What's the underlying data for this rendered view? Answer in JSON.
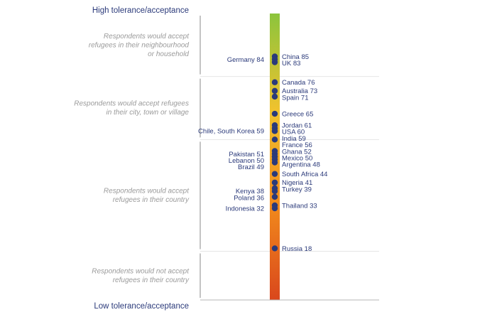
{
  "chart_data": {
    "type": "scatter",
    "top_label": "High tolerance/acceptance",
    "bottom_label": "Low tolerance/acceptance",
    "ylim": [
      0,
      100
    ],
    "gradient_colors": [
      "#8cc43c",
      "#f1c22e",
      "#f28c1c",
      "#d9471c"
    ],
    "point_color": "#2b3a7a",
    "bands": [
      {
        "text": [
          "Respondents would accept",
          "refugees in their neighbourhood",
          "or household"
        ],
        "from": 100,
        "to": 78
      },
      {
        "text": [
          "Respondents would accept refugees",
          "in their city, town or village"
        ],
        "from": 78,
        "to": 56
      },
      {
        "text": [
          "Respondents would accept",
          "refugees in their country"
        ],
        "from": 56,
        "to": 17
      },
      {
        "text": [
          "Respondents would not accept",
          "refugees in their country"
        ],
        "from": 17,
        "to": 0
      }
    ],
    "points": [
      {
        "country": "China",
        "value": 85,
        "side": "right"
      },
      {
        "country": "Germany",
        "value": 84,
        "side": "left"
      },
      {
        "country": "UK",
        "value": 83,
        "side": "right"
      },
      {
        "country": "Canada",
        "value": 76,
        "side": "right"
      },
      {
        "country": "Australia",
        "value": 73,
        "side": "right"
      },
      {
        "country": "Spain",
        "value": 71,
        "side": "right"
      },
      {
        "country": "Greece",
        "value": 65,
        "side": "right"
      },
      {
        "country": "Jordan",
        "value": 61,
        "side": "right"
      },
      {
        "country": "USA",
        "value": 60,
        "side": "right"
      },
      {
        "country": "Chile, South Korea",
        "value": 59,
        "side": "left"
      },
      {
        "country": "India",
        "value": 59,
        "side": "right"
      },
      {
        "country": "France",
        "value": 56,
        "side": "right"
      },
      {
        "country": "Ghana",
        "value": 52,
        "side": "right"
      },
      {
        "country": "Pakistan",
        "value": 51,
        "side": "left"
      },
      {
        "country": "Lebanon",
        "value": 50,
        "side": "left"
      },
      {
        "country": "Mexico",
        "value": 50,
        "side": "right"
      },
      {
        "country": "Brazil",
        "value": 49,
        "side": "left"
      },
      {
        "country": "Argentina",
        "value": 48,
        "side": "right"
      },
      {
        "country": "South Africa",
        "value": 44,
        "side": "right"
      },
      {
        "country": "Nigeria",
        "value": 41,
        "side": "right"
      },
      {
        "country": "Turkey",
        "value": 39,
        "side": "right"
      },
      {
        "country": "Kenya",
        "value": 38,
        "side": "left"
      },
      {
        "country": "Poland",
        "value": 36,
        "side": "left"
      },
      {
        "country": "Thailand",
        "value": 33,
        "side": "right"
      },
      {
        "country": "Indonesia",
        "value": 32,
        "side": "left"
      },
      {
        "country": "Russia",
        "value": 18,
        "side": "right"
      }
    ]
  }
}
